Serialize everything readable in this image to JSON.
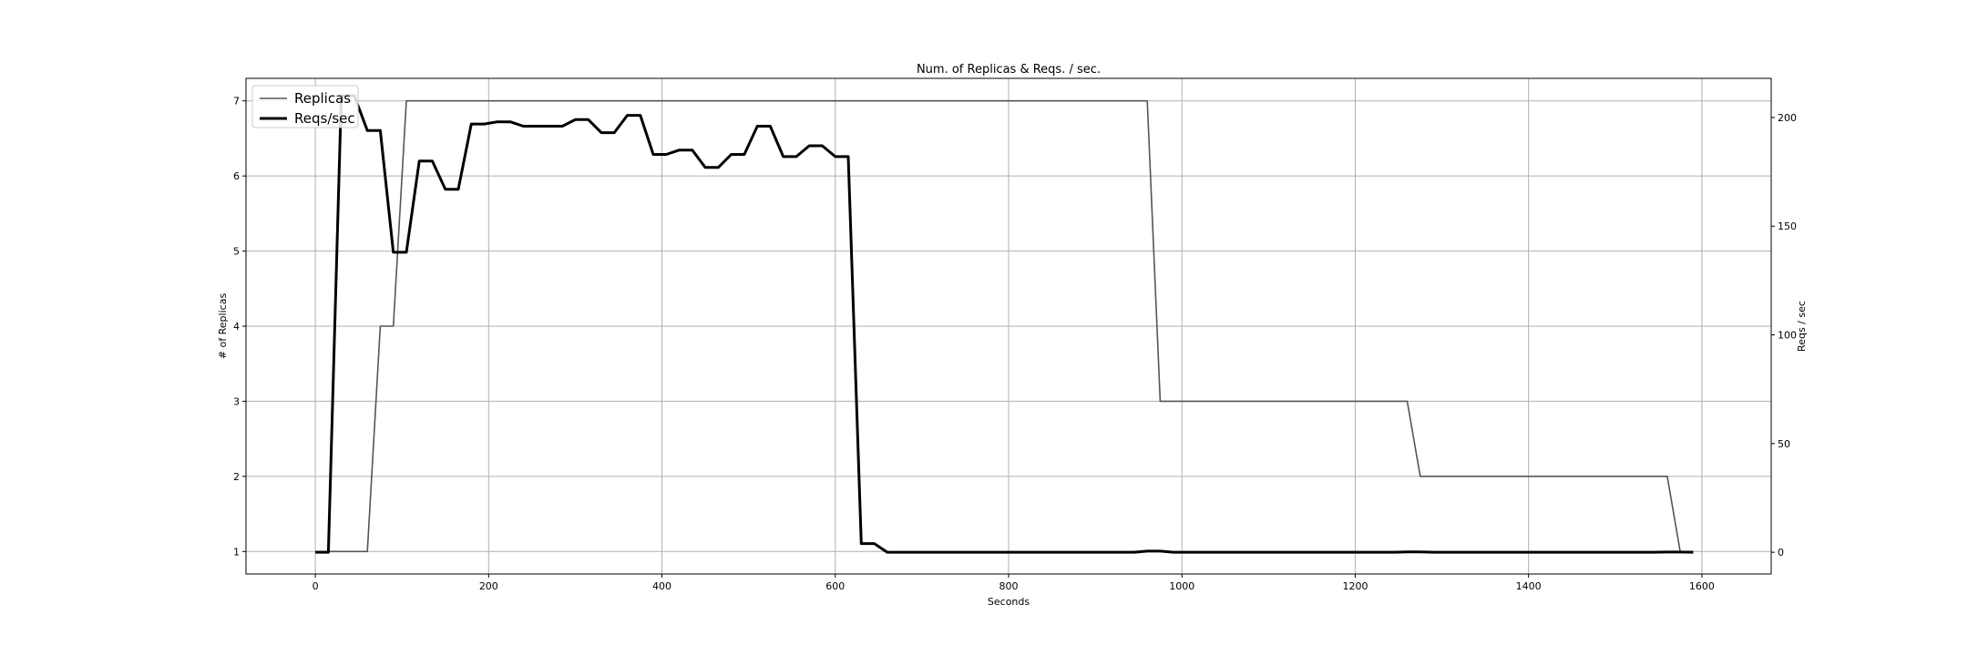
{
  "chart_data": {
    "type": "line",
    "title": "Num. of Replicas & Reqs. / sec.",
    "xlabel": "Seconds",
    "ylabel": "# of Replicas",
    "ylabel_right": "Reqs / sec",
    "xlim": [
      -80,
      1680
    ],
    "ylim": [
      0.7,
      7.3
    ],
    "ylim_right": [
      -10,
      218
    ],
    "xticks": [
      0,
      200,
      400,
      600,
      800,
      1000,
      1200,
      1400,
      1600
    ],
    "yticks": [
      1,
      2,
      3,
      4,
      5,
      6,
      7
    ],
    "yticks_right": [
      0,
      50,
      100,
      150,
      200
    ],
    "grid": true,
    "legend_position": "top-left",
    "series": [
      {
        "name": "Replicas",
        "axis": "left",
        "color": "#555555",
        "x": [
          0,
          60,
          75,
          90,
          105,
          960,
          975,
          1260,
          1275,
          1560,
          1575,
          1590
        ],
        "y": [
          1,
          1,
          4,
          4,
          7,
          7,
          3,
          3,
          2,
          2,
          1,
          1
        ]
      },
      {
        "name": "Reqs/sec",
        "axis": "right",
        "color": "#000000",
        "x": [
          0,
          15,
          30,
          45,
          60,
          75,
          90,
          105,
          120,
          135,
          150,
          165,
          180,
          195,
          210,
          225,
          240,
          255,
          270,
          285,
          300,
          315,
          330,
          345,
          360,
          375,
          390,
          405,
          420,
          435,
          450,
          465,
          480,
          495,
          510,
          525,
          540,
          555,
          570,
          585,
          600,
          615,
          630,
          645,
          660,
          675,
          690,
          705,
          720,
          735,
          750,
          765,
          780,
          795,
          810,
          825,
          840,
          855,
          870,
          885,
          900,
          915,
          930,
          945,
          960,
          975,
          990,
          1005,
          1020,
          1035,
          1050,
          1065,
          1080,
          1095,
          1110,
          1125,
          1140,
          1155,
          1170,
          1185,
          1200,
          1215,
          1230,
          1245,
          1260,
          1275,
          1290,
          1305,
          1320,
          1335,
          1350,
          1365,
          1380,
          1395,
          1410,
          1425,
          1440,
          1455,
          1470,
          1485,
          1500,
          1515,
          1530,
          1545,
          1560,
          1575,
          1590
        ],
        "y": [
          0,
          0,
          210,
          210,
          194,
          194,
          138,
          138,
          180,
          180,
          167,
          167,
          197,
          197,
          198,
          198,
          196,
          196,
          196,
          196,
          199,
          199,
          193,
          193,
          201,
          201,
          183,
          183,
          185,
          185,
          177,
          177,
          183,
          183,
          196,
          196,
          182,
          182,
          187,
          187,
          182,
          182,
          4,
          4,
          0,
          0,
          0,
          0,
          0,
          0,
          0,
          0,
          0,
          0,
          0,
          0,
          0,
          0,
          0,
          0,
          0,
          0,
          0,
          0,
          0.5,
          0.5,
          0,
          0,
          0,
          0,
          0,
          0,
          0,
          0,
          0,
          0,
          0,
          0,
          0,
          0,
          0,
          0,
          0,
          0,
          0.2,
          0.2,
          0,
          0,
          0,
          0,
          0,
          0,
          0,
          0,
          0,
          0,
          0,
          0,
          0,
          0,
          0,
          0,
          0,
          0,
          0.1,
          0.1,
          0
        ]
      }
    ]
  }
}
